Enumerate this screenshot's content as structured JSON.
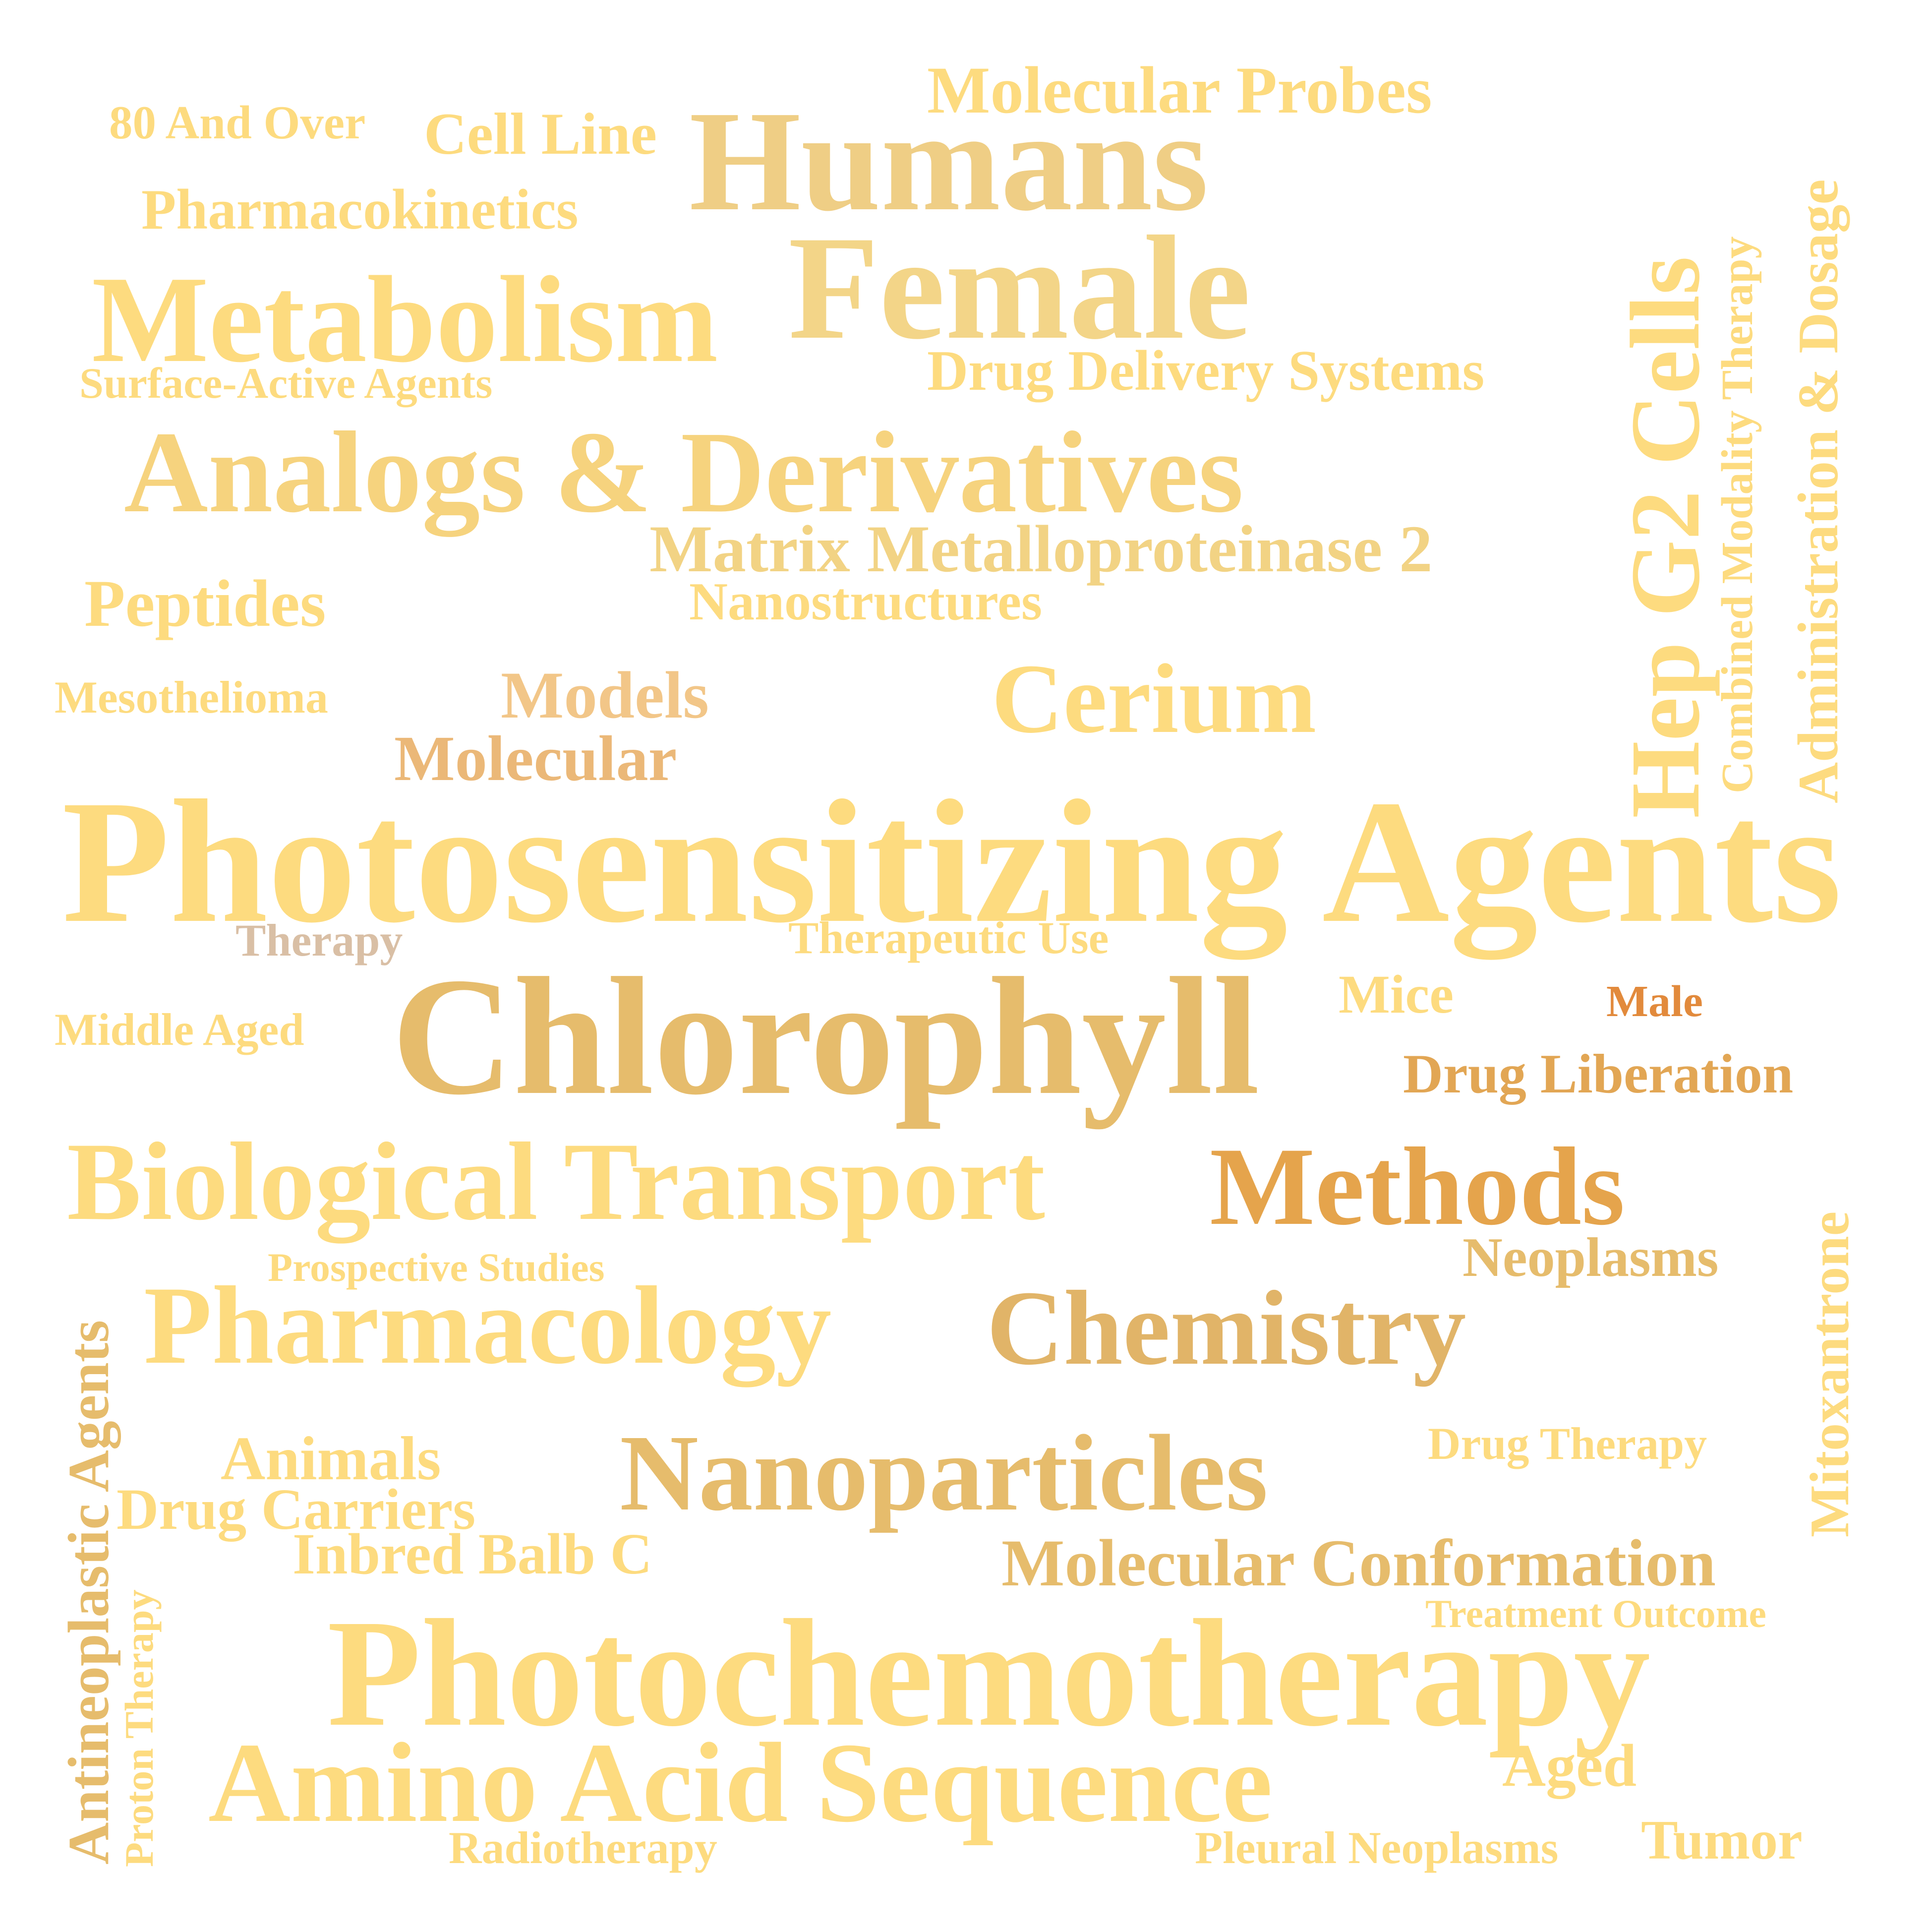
{
  "words": [
    {
      "text": "Photosensitizing Agents",
      "color": "#FDDB7F"
    },
    {
      "text": "Photochemotherapy",
      "color": "#FDDB7F"
    },
    {
      "text": "Chlorophyll",
      "color": "#E6BC6C"
    },
    {
      "text": "Humans",
      "color": "#EFCE85"
    },
    {
      "text": "Female",
      "color": "#F3D588"
    },
    {
      "text": "Metabolism",
      "color": "#FDDB7F"
    },
    {
      "text": "Analogs & Derivatives",
      "color": "#F6D37E"
    },
    {
      "text": "Biological Transport",
      "color": "#FDDB7F"
    },
    {
      "text": "Amino Acid Sequence",
      "color": "#FDDB7F"
    },
    {
      "text": "Pharmacology",
      "color": "#FDDB7F"
    },
    {
      "text": "Nanoparticles",
      "color": "#E6BC6C"
    },
    {
      "text": "Chemistry",
      "color": "#E1B468"
    },
    {
      "text": "Methods",
      "color": "#E5A44C"
    },
    {
      "text": "Cerium",
      "color": "#FDDB7F"
    },
    {
      "text": "Hep G2 Cells",
      "color": "#FDDB7F"
    },
    {
      "text": "Molecular Probes",
      "color": "#FDDB7F"
    },
    {
      "text": "Matrix Metalloproteinase 2",
      "color": "#F2D384"
    },
    {
      "text": "Drug Delivery Systems",
      "color": "#FDDB7F"
    },
    {
      "text": "Administration & Dosage",
      "color": "#FDDB7F"
    },
    {
      "text": "Combined Modality Therapy",
      "color": "#FDDB7F"
    },
    {
      "text": "Pharmacokinetics",
      "color": "#FDDB7F"
    },
    {
      "text": "Cell Line",
      "color": "#FDDB7F"
    },
    {
      "text": "80 And Over",
      "color": "#FDDB7F"
    },
    {
      "text": "Surface-Active Agents",
      "color": "#FDDB7F"
    },
    {
      "text": "Peptides",
      "color": "#FDDB7F"
    },
    {
      "text": "Nanostructures",
      "color": "#FDDB7F"
    },
    {
      "text": "Mesothelioma",
      "color": "#FDDB7F"
    },
    {
      "text": "Models",
      "color": "#F2C688"
    },
    {
      "text": "Molecular",
      "color": "#EBB878"
    },
    {
      "text": "Therapy",
      "color": "#D9BFA5"
    },
    {
      "text": "Therapeutic Use",
      "color": "#FDDB7F"
    },
    {
      "text": "Middle Aged",
      "color": "#FDDB7F"
    },
    {
      "text": "Mice",
      "color": "#FDDB7F"
    },
    {
      "text": "Male",
      "color": "#E28A3C"
    },
    {
      "text": "Drug Liberation",
      "color": "#E2A654"
    },
    {
      "text": "Neoplasms",
      "color": "#E6BC6C"
    },
    {
      "text": "Prospective Studies",
      "color": "#FDDB7F"
    },
    {
      "text": "Mitoxantrone",
      "color": "#FDDB7F"
    },
    {
      "text": "Antineoplastic Agents",
      "color": "#E6BC6C"
    },
    {
      "text": "Proton Therapy",
      "color": "#FDDB7F"
    },
    {
      "text": "Animals",
      "color": "#FDDB7F"
    },
    {
      "text": "Drug Carriers",
      "color": "#FDDB7F"
    },
    {
      "text": "Inbred Balb C",
      "color": "#FDDB7F"
    },
    {
      "text": "Drug Therapy",
      "color": "#FDDB7F"
    },
    {
      "text": "Molecular Conformation",
      "color": "#E6BC6C"
    },
    {
      "text": "Treatment Outcome",
      "color": "#FDDB7F"
    },
    {
      "text": "Aged",
      "color": "#FDDB7F"
    },
    {
      "text": "Tumor",
      "color": "#FDDB7F"
    },
    {
      "text": "Radiotherapy",
      "color": "#FDDB7F"
    },
    {
      "text": "Pleural Neoplasms",
      "color": "#FDDB7F"
    }
  ]
}
